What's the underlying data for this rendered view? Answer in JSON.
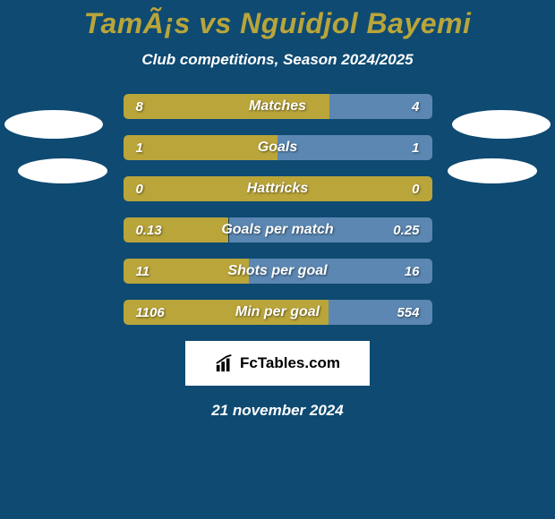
{
  "background_color": "#0e4a72",
  "text_color": "#ffffff",
  "title_color": "#b9a53a",
  "title": "TamÃ¡s vs Nguidjol Bayemi",
  "subtitle": "Club competitions, Season 2024/2025",
  "left_color": "#b9a53a",
  "right_color": "#5b87b2",
  "bar_track_color": "#0c3e5f",
  "stats": [
    {
      "label": "Matches",
      "left_val": "8",
      "right_val": "4",
      "left_pct": 66.7,
      "right_pct": 33.3
    },
    {
      "label": "Goals",
      "left_val": "1",
      "right_val": "1",
      "left_pct": 50.0,
      "right_pct": 50.0
    },
    {
      "label": "Hattricks",
      "left_val": "0",
      "right_val": "0",
      "left_pct": 100.0,
      "right_pct": 0.0
    },
    {
      "label": "Goals per match",
      "left_val": "0.13",
      "right_val": "0.25",
      "left_pct": 34.2,
      "right_pct": 65.8
    },
    {
      "label": "Shots per goal",
      "left_val": "11",
      "right_val": "16",
      "left_pct": 40.7,
      "right_pct": 59.3
    },
    {
      "label": "Min per goal",
      "left_val": "1106",
      "right_val": "554",
      "left_pct": 66.6,
      "right_pct": 33.4
    }
  ],
  "logo_text": "FcTables.com",
  "date": "21 november 2024"
}
